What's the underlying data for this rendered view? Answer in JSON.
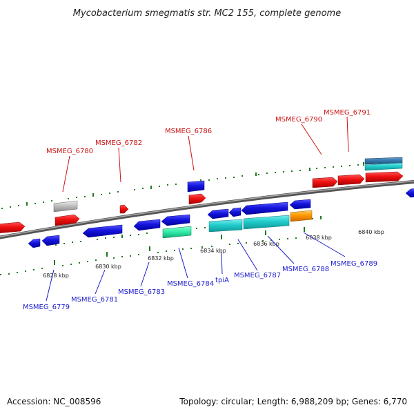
{
  "title": "Mycobacterium smegmatis str. MC2 155, complete genome",
  "footer": {
    "accession": "Accession: NC_008596",
    "topology": "Topology: circular; Length: 6,988,209 bp; Genes: 6,770"
  },
  "colors": {
    "forward_label": "#cc1111",
    "reverse_label": "#1a1acc",
    "backbone": "#7a7a7a",
    "tick_green": "#1f7a1f",
    "gene_red": "#ee1111",
    "gene_blue": "#1515dd",
    "gene_cyan": "#22cccc",
    "gene_teal": "#33eeaa",
    "gene_orange": "#ff9900",
    "gene_gray": "#bbbbbb",
    "gene_steelblue": "#3377aa"
  },
  "scale_ticks": [
    {
      "label": "6828 kbp"
    },
    {
      "label": "6830 kbp"
    },
    {
      "label": "6832 kbp"
    },
    {
      "label": "6834 kbp"
    },
    {
      "label": "6836 kbp"
    },
    {
      "label": "6838 kbp"
    },
    {
      "label": "6840 kbp"
    }
  ],
  "forward_genes": [
    {
      "label": "MSMEG_6780"
    },
    {
      "label": "MSMEG_6782"
    },
    {
      "label": "MSMEG_6786"
    },
    {
      "label": "MSMEG_6790"
    },
    {
      "label": "MSMEG_6791"
    }
  ],
  "reverse_genes": [
    {
      "label": "MSMEG_6779"
    },
    {
      "label": "MSMEG_6781"
    },
    {
      "label": "MSMEG_6783"
    },
    {
      "label": "MSMEG_6784"
    },
    {
      "label": "tpiA"
    },
    {
      "label": "MSMEG_6787"
    },
    {
      "label": "MSMEG_6788"
    },
    {
      "label": "MSMEG_6789"
    }
  ]
}
